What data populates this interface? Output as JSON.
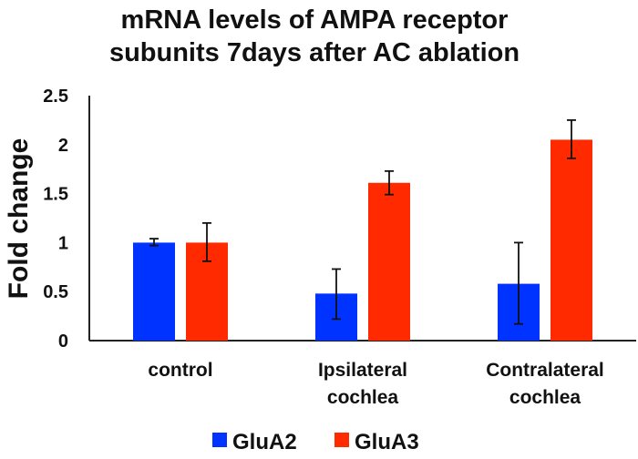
{
  "chart_data": {
    "type": "bar",
    "title_lines": [
      "mRNA levels of AMPA receptor",
      "subunits 7days after AC ablation"
    ],
    "ylabel": "Fold change",
    "xlabel": "",
    "ylim": [
      0,
      2.5
    ],
    "yticks": [
      "0",
      "0.5",
      "1",
      "1.5",
      "2",
      "2.5"
    ],
    "categories": [
      [
        "control"
      ],
      [
        "Ipsilateral",
        "cochlea"
      ],
      [
        "Contralateral",
        "cochlea"
      ]
    ],
    "series": [
      {
        "name": "GluA2",
        "color": "#0033ff",
        "values": [
          1.0,
          0.48,
          0.58
        ],
        "error_low": [
          0.97,
          0.22,
          0.17
        ],
        "error_high": [
          1.04,
          0.73,
          1.0
        ]
      },
      {
        "name": "GluA3",
        "color": "#ff2a00",
        "values": [
          1.0,
          1.61,
          2.05
        ],
        "error_low": [
          0.81,
          1.49,
          1.86
        ],
        "error_high": [
          1.2,
          1.73,
          2.25
        ]
      }
    ],
    "grid": false,
    "legend_position": "bottom"
  }
}
